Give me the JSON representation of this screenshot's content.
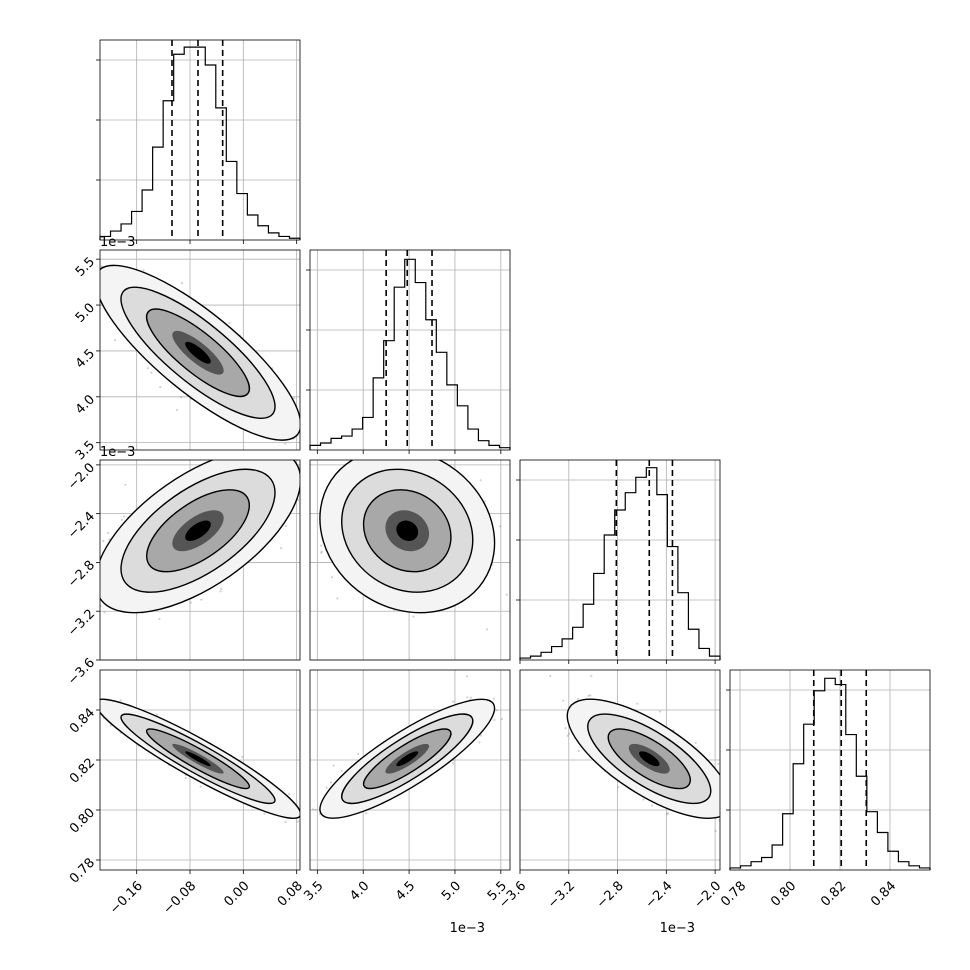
{
  "chart_data": {
    "type": "corner",
    "parameters": [
      "p1",
      "p2",
      "p3",
      "p4"
    ],
    "style": {
      "hist_color": "#000000",
      "scatter_color": "#808080",
      "grid": true,
      "quantile_line_style": "dashed",
      "contour_fill": "grayscale"
    },
    "params": [
      {
        "id": "p1",
        "range": [
          -0.215,
          0.085
        ],
        "ticks": [
          -0.16,
          -0.08,
          0.0,
          0.08
        ],
        "tick_labels": [
          "−0.16",
          "−0.08",
          "0.00",
          "0.08"
        ],
        "offset_text": "",
        "hist_counts": [
          2,
          5,
          9,
          16,
          28,
          52,
          78,
          104,
          108,
          108,
          98,
          74,
          44,
          26,
          14,
          8,
          4,
          2,
          1
        ],
        "hist_ymax": 112,
        "quantiles": [
          -0.107,
          -0.068,
          -0.031
        ]
      },
      {
        "id": "p2",
        "range": [
          3.42,
          5.6
        ],
        "ticks": [
          3.5,
          4.0,
          4.5,
          5.0,
          5.5
        ],
        "tick_labels": [
          "3.5",
          "4.0",
          "4.5",
          "5.0",
          "5.5"
        ],
        "offset_text": "1e−3",
        "hist_counts": [
          2,
          3,
          5,
          6,
          9,
          14,
          31,
          47,
          70,
          82,
          72,
          56,
          42,
          28,
          19,
          9,
          4,
          2,
          1
        ],
        "hist_ymax": 86,
        "quantiles": [
          4.25,
          4.48,
          4.75
        ]
      },
      {
        "id": "p3",
        "range": [
          -3.6,
          -1.96
        ],
        "ticks": [
          -3.6,
          -3.2,
          -2.8,
          -2.4,
          -2.0
        ],
        "tick_labels": [
          "−3.6",
          "−3.2",
          "−2.8",
          "−2.4",
          "−2.0"
        ],
        "offset_text": "1e−3",
        "hist_counts": [
          1,
          2,
          4,
          7,
          11,
          17,
          29,
          45,
          65,
          78,
          87,
          95,
          100,
          86,
          59,
          35,
          16,
          6,
          2
        ],
        "hist_ymax": 104,
        "quantiles": [
          -2.81,
          -2.54,
          -2.35
        ]
      },
      {
        "id": "p4",
        "range": [
          0.776,
          0.856
        ],
        "ticks": [
          0.78,
          0.8,
          0.82,
          0.84
        ],
        "tick_labels": [
          "0.78",
          "0.80",
          "0.82",
          "0.84"
        ],
        "offset_text": "",
        "hist_counts": [
          1,
          2,
          4,
          6,
          12,
          27,
          51,
          70,
          86,
          92,
          89,
          65,
          45,
          28,
          18,
          9,
          4,
          2,
          1
        ],
        "hist_ymax": 96,
        "quantiles": [
          0.8095,
          0.8205,
          0.8305
        ]
      }
    ],
    "pairs": [
      {
        "x": "p1",
        "y": "p2",
        "center": [
          -0.068,
          4.48
        ],
        "sd": [
          0.055,
          0.34
        ],
        "corr": -0.82
      },
      {
        "x": "p1",
        "y": "p3",
        "center": [
          -0.068,
          -2.54
        ],
        "sd": [
          0.055,
          0.24
        ],
        "corr": 0.62
      },
      {
        "x": "p2",
        "y": "p3",
        "center": [
          4.48,
          -2.54
        ],
        "sd": [
          0.34,
          0.24
        ],
        "corr": -0.15
      },
      {
        "x": "p1",
        "y": "p4",
        "center": [
          -0.068,
          0.8205
        ],
        "sd": [
          0.055,
          0.0085
        ],
        "corr": -0.93
      },
      {
        "x": "p2",
        "y": "p4",
        "center": [
          4.48,
          0.8205
        ],
        "sd": [
          0.34,
          0.0085
        ],
        "corr": 0.85
      },
      {
        "x": "p3",
        "y": "p4",
        "center": [
          -2.54,
          0.8205
        ],
        "sd": [
          0.24,
          0.0085
        ],
        "corr": -0.72
      }
    ],
    "contour_levels_sigma": [
      0.5,
      1.0,
      1.5,
      2.0
    ]
  }
}
